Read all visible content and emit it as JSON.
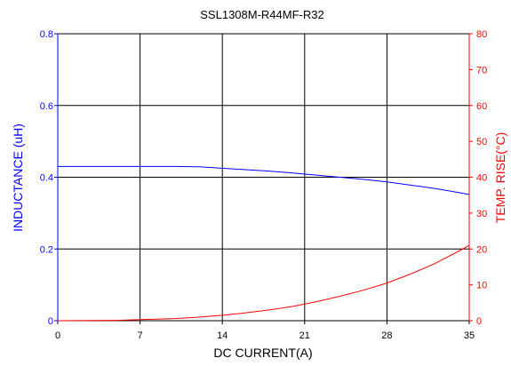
{
  "chart_data": {
    "type": "line",
    "title": "SSL1308M-R44MF-R32",
    "xlabel": "DC CURRENT(A)",
    "ylabel_left": "INDUCTANCE (uH)",
    "ylabel_right": "TEMP. RISE(°C)",
    "xlim": [
      0,
      35
    ],
    "ylim_left": [
      0,
      0.8
    ],
    "ylim_right": [
      0,
      80
    ],
    "x_ticks": [
      "0",
      "7",
      "14",
      "21",
      "28",
      "35"
    ],
    "y_left_ticks": [
      "0",
      "0.2",
      "0.4",
      "0.6",
      "0.8"
    ],
    "y_right_ticks": [
      "0",
      "10",
      "20",
      "30",
      "40",
      "50",
      "60",
      "70",
      "80"
    ],
    "grid": true,
    "colors": {
      "inductance": "#0000ff",
      "temp_rise": "#ff0000",
      "grid": "#000000"
    },
    "series": [
      {
        "axis": "left",
        "color": "#0000ff",
        "x": [
          0,
          5,
          10,
          12,
          14,
          16,
          18,
          20,
          22,
          24,
          26,
          28,
          30,
          32,
          34,
          35
        ],
        "y": [
          0.43,
          0.43,
          0.43,
          0.429,
          0.425,
          0.421,
          0.417,
          0.412,
          0.406,
          0.4,
          0.394,
          0.387,
          0.378,
          0.369,
          0.358,
          0.352
        ]
      },
      {
        "axis": "right",
        "color": "#ff0000",
        "x": [
          0,
          5,
          7,
          10,
          12,
          14,
          16,
          18,
          20,
          22,
          24,
          26,
          28,
          30,
          32,
          34,
          35
        ],
        "y": [
          0,
          0.1,
          0.3,
          0.6,
          1.0,
          1.5,
          2.2,
          3.0,
          4.0,
          5.3,
          6.8,
          8.5,
          10.5,
          13.0,
          15.8,
          19.2,
          21.0
        ]
      }
    ]
  }
}
